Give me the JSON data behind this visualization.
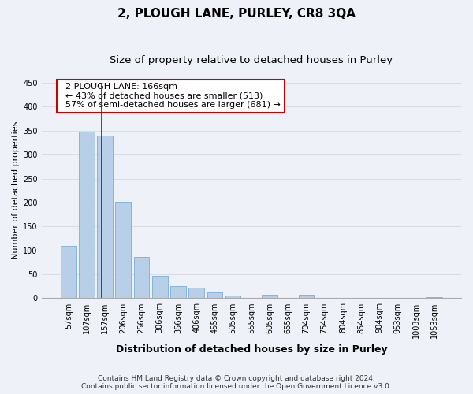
{
  "title": "2, PLOUGH LANE, PURLEY, CR8 3QA",
  "subtitle": "Size of property relative to detached houses in Purley",
  "xlabel": "Distribution of detached houses by size in Purley",
  "ylabel": "Number of detached properties",
  "categories": [
    "57sqm",
    "107sqm",
    "157sqm",
    "206sqm",
    "256sqm",
    "306sqm",
    "356sqm",
    "406sqm",
    "455sqm",
    "505sqm",
    "555sqm",
    "605sqm",
    "655sqm",
    "704sqm",
    "754sqm",
    "804sqm",
    "854sqm",
    "904sqm",
    "953sqm",
    "1003sqm",
    "1053sqm"
  ],
  "values": [
    110,
    348,
    340,
    202,
    87,
    47,
    25,
    22,
    12,
    5,
    0,
    8,
    0,
    7,
    0,
    0,
    0,
    0,
    0,
    0,
    3
  ],
  "bar_color": "#b8cfe8",
  "bar_edge_color": "#7aaed6",
  "vline_x": 1.82,
  "vline_color": "#aa0000",
  "annotation_text": "  2 PLOUGH LANE: 166sqm\n  ← 43% of detached houses are smaller (513)\n  57% of semi-detached houses are larger (681) →",
  "annotation_box_color": "#ffffff",
  "annotation_box_edge_color": "#cc0000",
  "ylim": [
    0,
    450
  ],
  "yticks": [
    0,
    50,
    100,
    150,
    200,
    250,
    300,
    350,
    400,
    450
  ],
  "footer_line1": "Contains HM Land Registry data © Crown copyright and database right 2024.",
  "footer_line2": "Contains public sector information licensed under the Open Government Licence v3.0.",
  "background_color": "#eef2f8",
  "plot_bg_color": "#eef2f8",
  "grid_color": "#d8dde8",
  "title_fontsize": 11,
  "subtitle_fontsize": 9.5,
  "xlabel_fontsize": 9,
  "ylabel_fontsize": 8,
  "tick_fontsize": 7,
  "footer_fontsize": 6.5,
  "annotation_fontsize": 8
}
